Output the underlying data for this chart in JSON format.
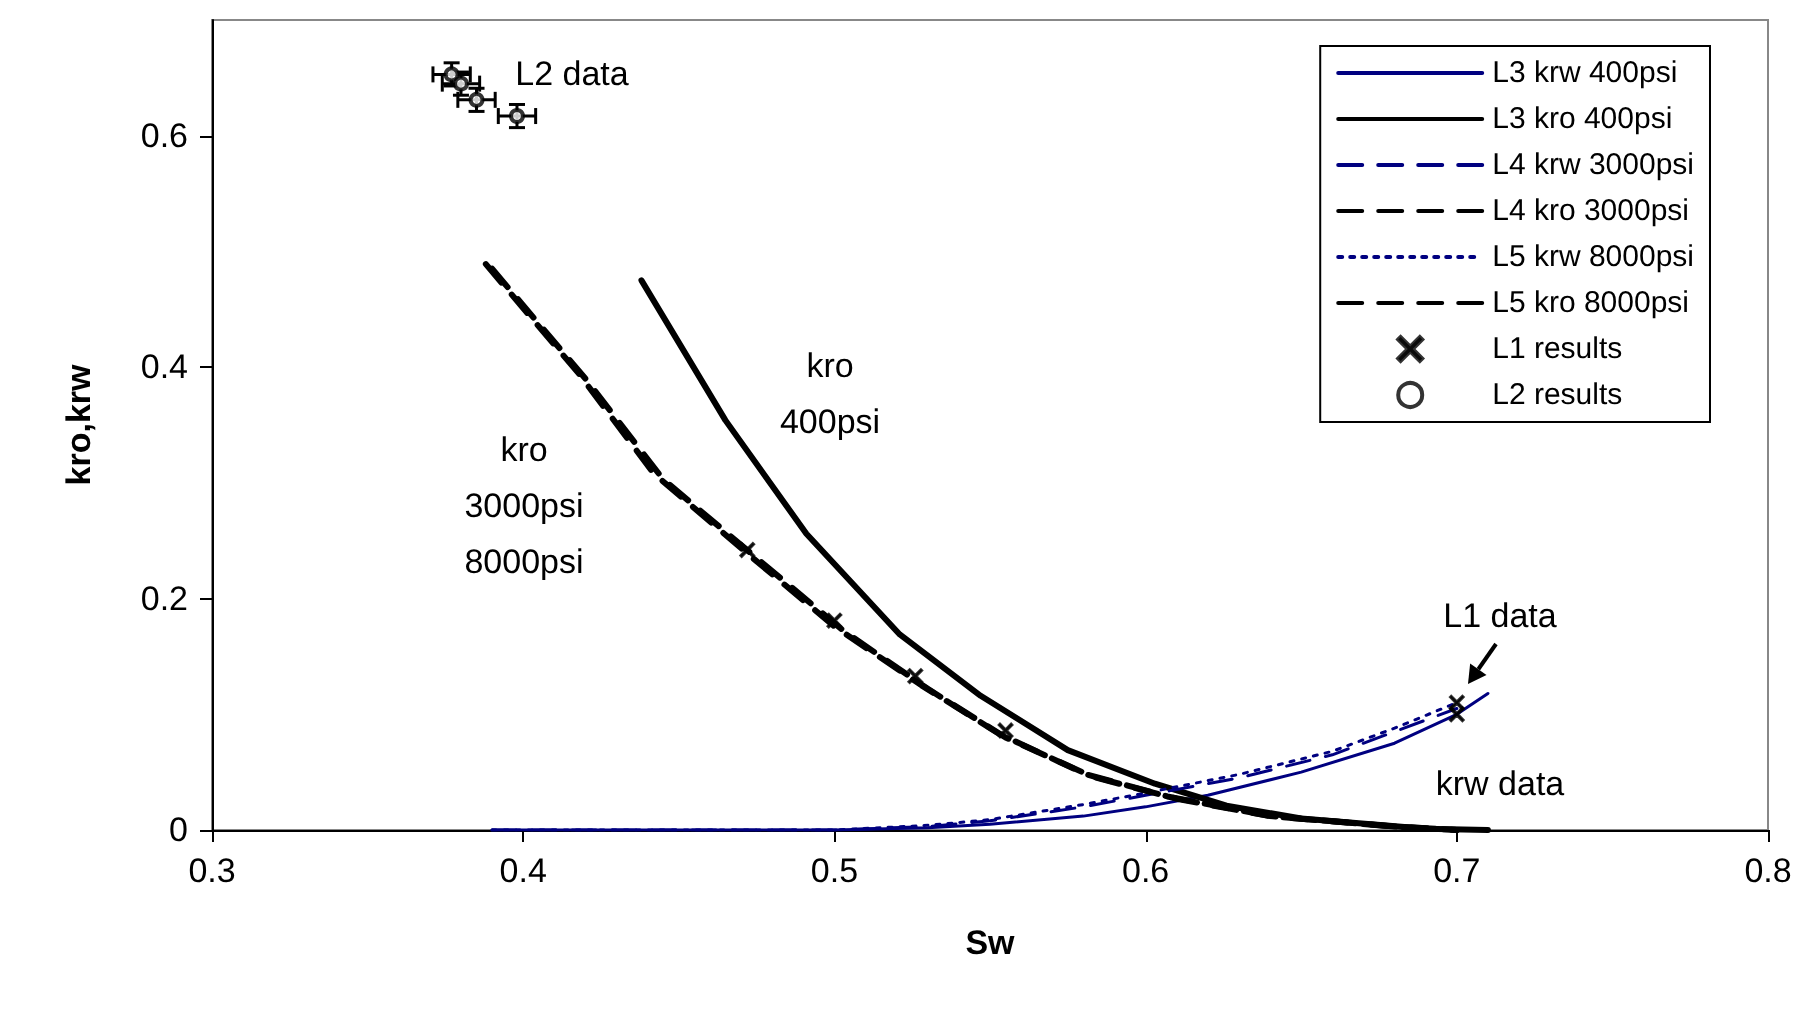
{
  "chart_data": {
    "type": "line",
    "xlabel": "Sw",
    "ylabel": "kro,krw",
    "xlim": [
      0.3,
      0.8
    ],
    "xticks": [
      0.3,
      0.4,
      0.5,
      0.6,
      0.7,
      0.8
    ],
    "ylim": [
      0,
      0.7
    ],
    "yticks": [
      0,
      0.2,
      0.4,
      0.6
    ],
    "grid": false,
    "legend": "top right",
    "series": [
      {
        "name": "L3 krw 400psi",
        "color": "#000080",
        "line_style": "solid",
        "marker": "none",
        "x": [
          0.39,
          0.45,
          0.5,
          0.53,
          0.55,
          0.58,
          0.6,
          0.62,
          0.65,
          0.68,
          0.7,
          0.71
        ],
        "values": [
          0,
          0,
          0,
          0.002,
          0.005,
          0.012,
          0.02,
          0.03,
          0.05,
          0.075,
          0.1,
          0.118
        ]
      },
      {
        "name": "L3 kro 400psi",
        "color": "#000000",
        "line_style": "solid",
        "marker": "none",
        "x": [
          0.438,
          0.465,
          0.491,
          0.521,
          0.547,
          0.575,
          0.603,
          0.626,
          0.65,
          0.69,
          0.71
        ],
        "values": [
          0.475,
          0.354,
          0.256,
          0.169,
          0.116,
          0.069,
          0.04,
          0.021,
          0.01,
          0.001,
          0
        ]
      },
      {
        "name": "L4 krw 3000psi",
        "color": "#000080",
        "line_style": "dashed",
        "marker": "none",
        "x": [
          0.39,
          0.45,
          0.5,
          0.53,
          0.55,
          0.58,
          0.6,
          0.63,
          0.66,
          0.68,
          0.7
        ],
        "values": [
          0,
          0,
          0,
          0.003,
          0.008,
          0.02,
          0.03,
          0.045,
          0.065,
          0.085,
          0.105
        ]
      },
      {
        "name": "L4 kro 3000psi",
        "color": "#000000",
        "line_style": "dashed",
        "marker": "none",
        "x": [
          0.388,
          0.418,
          0.442,
          0.472,
          0.5,
          0.528,
          0.553,
          0.581,
          0.607,
          0.64,
          0.68,
          0.7
        ],
        "values": [
          0.489,
          0.394,
          0.308,
          0.239,
          0.176,
          0.125,
          0.083,
          0.048,
          0.029,
          0.012,
          0.003,
          0
        ]
      },
      {
        "name": "L5 krw 8000psi",
        "color": "#000080",
        "line_style": "dotted",
        "marker": "none",
        "x": [
          0.39,
          0.45,
          0.5,
          0.53,
          0.55,
          0.58,
          0.6,
          0.63,
          0.66,
          0.68,
          0.7
        ],
        "values": [
          0,
          0,
          0,
          0.004,
          0.009,
          0.022,
          0.032,
          0.048,
          0.068,
          0.088,
          0.11
        ]
      },
      {
        "name": "L5 kro 8000psi",
        "color": "#000000",
        "line_style": "dashed",
        "marker": "none",
        "x": [
          0.39,
          0.42,
          0.445,
          0.475,
          0.503,
          0.53,
          0.555,
          0.583,
          0.61,
          0.64,
          0.68,
          0.7
        ],
        "values": [
          0.485,
          0.39,
          0.303,
          0.235,
          0.172,
          0.122,
          0.08,
          0.046,
          0.027,
          0.012,
          0.003,
          0
        ]
      },
      {
        "name": "L1 results",
        "type": "scatter",
        "color": "#000000",
        "marker": "cross",
        "x": [
          0.472,
          0.5,
          0.526,
          0.555,
          0.7,
          0.7
        ],
        "values": [
          0.242,
          0.181,
          0.133,
          0.086,
          0.11,
          0.1
        ]
      },
      {
        "name": "L2 results",
        "type": "scatter",
        "color": "#000000",
        "marker": "circle",
        "x": [
          0.377,
          0.38,
          0.385,
          0.398
        ],
        "values": [
          0.653,
          0.645,
          0.631,
          0.617
        ],
        "errors": [
          0.01,
          0.01,
          0.01,
          0.01
        ],
        "xerrors": [
          0.006,
          0.006,
          0.006,
          0.006
        ]
      }
    ],
    "annotations": [
      "L2 data",
      "kro\n400psi",
      "kro\n3000psi\n8000psi",
      "L1 data",
      "krw data"
    ]
  }
}
